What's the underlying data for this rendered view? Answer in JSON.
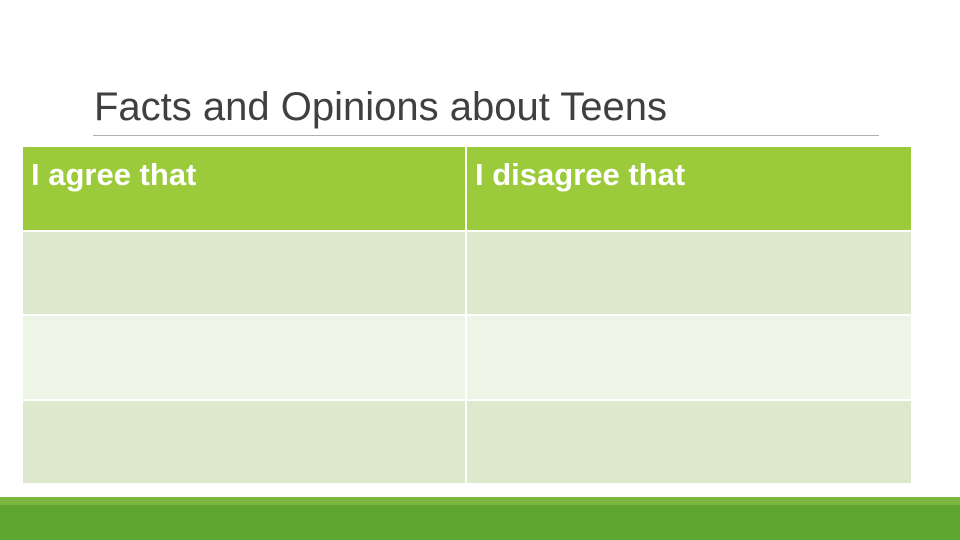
{
  "slide": {
    "title": "Facts and Opinions about Teens",
    "table": {
      "headers": [
        "I agree that",
        "I disagree that"
      ],
      "rows": [
        [
          "",
          ""
        ],
        [
          "",
          ""
        ],
        [
          "",
          ""
        ]
      ]
    }
  },
  "colors": {
    "header_green": "#9bcb3a",
    "row_light_1": "#dde9cd",
    "row_light_2": "#eef4e6",
    "footer_green": "#5fa631",
    "title_text": "#404040"
  }
}
